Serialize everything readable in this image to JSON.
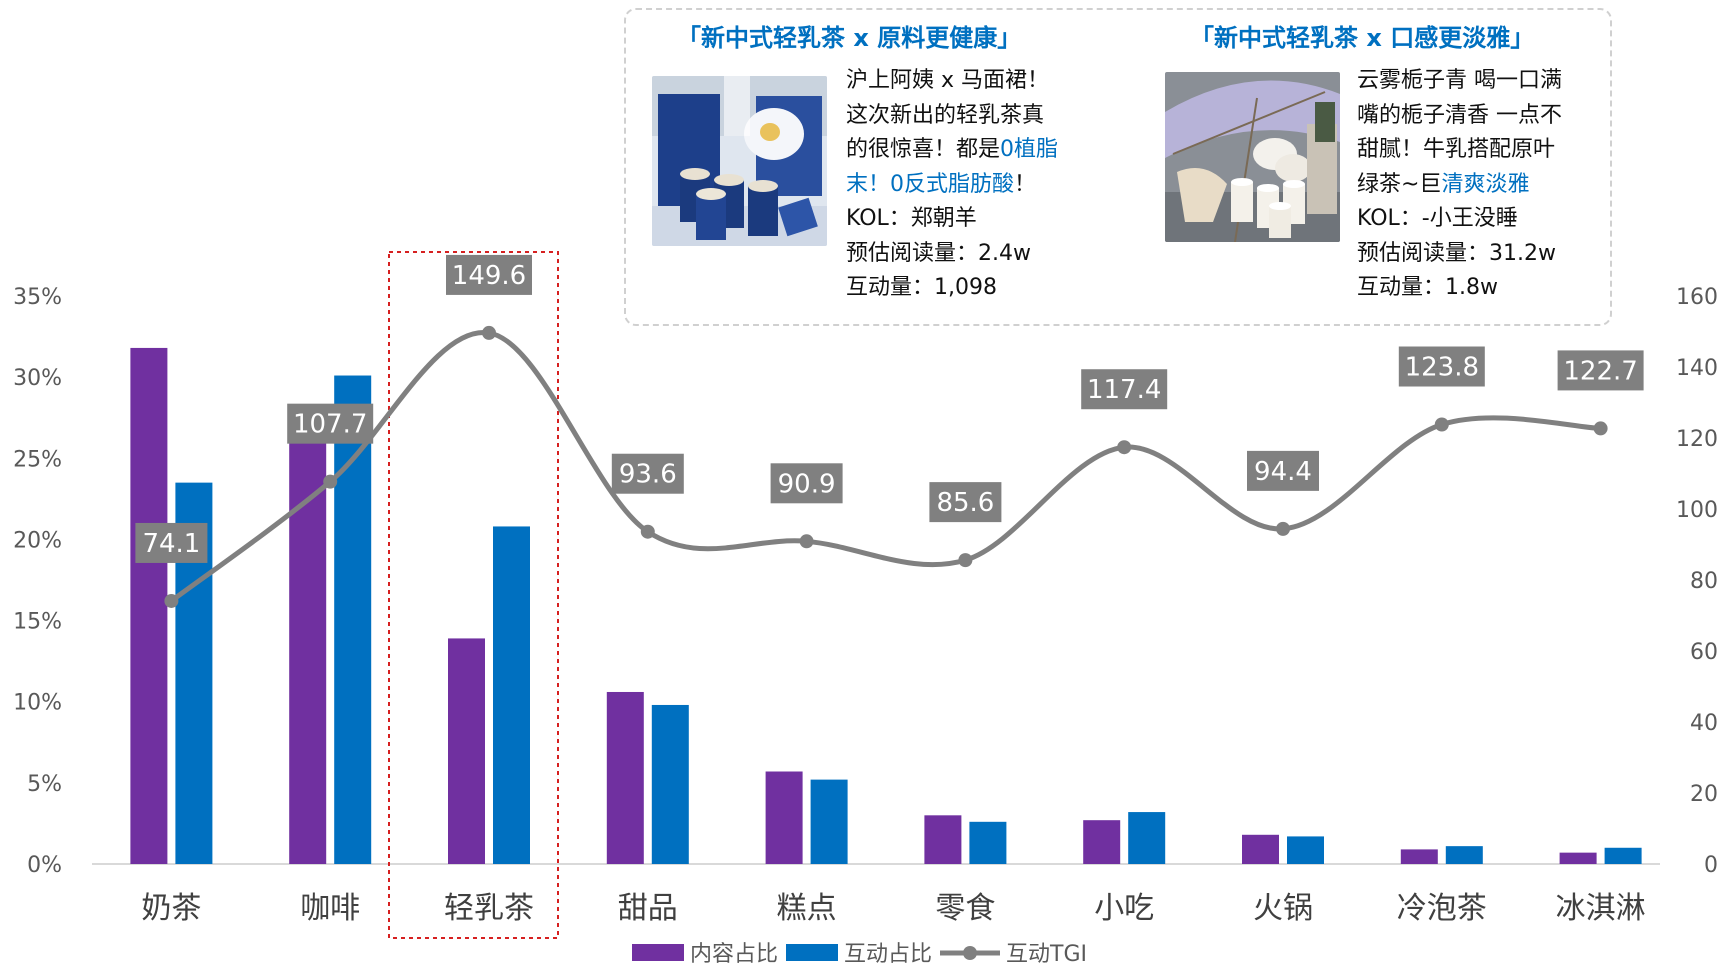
{
  "chart_data": {
    "type": "bar",
    "categories": [
      "奶茶",
      "咖啡",
      "轻乳茶",
      "甜品",
      "糕点",
      "零食",
      "小吃",
      "火锅",
      "冷泡茶",
      "冰淇淋"
    ],
    "series": [
      {
        "name": "内容占比",
        "kind": "bar",
        "axis": "left",
        "color": "#7030A0",
        "values": [
          31.8,
          27.9,
          13.9,
          10.6,
          5.7,
          3.0,
          2.7,
          1.8,
          0.9,
          0.7
        ]
      },
      {
        "name": "互动占比",
        "kind": "bar",
        "axis": "left",
        "color": "#0070C0",
        "values": [
          23.5,
          30.1,
          20.8,
          9.8,
          5.2,
          2.6,
          3.2,
          1.7,
          1.1,
          1.0
        ]
      },
      {
        "name": "互动TGI",
        "kind": "line",
        "axis": "right",
        "color": "#808080",
        "values": [
          74.1,
          107.7,
          149.6,
          93.6,
          90.9,
          85.6,
          117.4,
          94.4,
          123.8,
          122.7
        ]
      }
    ],
    "y_left": {
      "range": [
        0,
        35
      ],
      "ticks": [
        "0%",
        "5%",
        "10%",
        "15%",
        "20%",
        "25%",
        "30%",
        "35%"
      ]
    },
    "y_right": {
      "range": [
        0,
        160
      ],
      "ticks": [
        "0",
        "20",
        "40",
        "60",
        "80",
        "100",
        "120",
        "140",
        "160"
      ]
    },
    "data_labels": [
      "74.1",
      "107.7",
      "149.6",
      "93.6",
      "90.9",
      "85.6",
      "117.4",
      "94.4",
      "123.8",
      "122.7"
    ],
    "highlight_category": "轻乳茶",
    "grid": false,
    "legend": {
      "position": "bottom",
      "entries": [
        "内容占比",
        "互动占比",
        "互动TGI"
      ]
    }
  },
  "cards": [
    {
      "title": "「新中式轻乳茶 x 原料更健康」",
      "image_icon": "blue-porcelain-tea-cups-photo",
      "lines": [
        [
          {
            "t": "沪上阿姨 x 马面裙！"
          }
        ],
        [
          {
            "t": "这次新出的轻乳茶真"
          }
        ],
        [
          {
            "t": "的很惊喜！都是"
          },
          {
            "t": "0植脂",
            "hl": true
          }
        ],
        [
          {
            "t": "末！0反式脂肪酸",
            "hl": true
          },
          {
            "t": "！"
          }
        ],
        [
          {
            "t": "KOL：郑朝羊"
          }
        ],
        [
          {
            "t": "预估阅读量：2.4w"
          }
        ],
        [
          {
            "t": "互动量：1,098"
          }
        ]
      ]
    },
    {
      "title": "「新中式轻乳茶 x 口感更淡雅」",
      "image_icon": "parasol-fan-tea-cups-photo",
      "lines": [
        [
          {
            "t": "云雾栀子青 喝一口满"
          }
        ],
        [
          {
            "t": "嘴的栀子清香 一点不"
          }
        ],
        [
          {
            "t": "甜腻！牛乳搭配原叶"
          }
        ],
        [
          {
            "t": "绿茶~巨"
          },
          {
            "t": "清爽淡雅",
            "hl": true
          }
        ],
        [
          {
            "t": "KOL：-小王没睡"
          }
        ],
        [
          {
            "t": "预估阅读量：31.2w"
          }
        ],
        [
          {
            "t": "互动量：1.8w"
          }
        ]
      ]
    }
  ]
}
